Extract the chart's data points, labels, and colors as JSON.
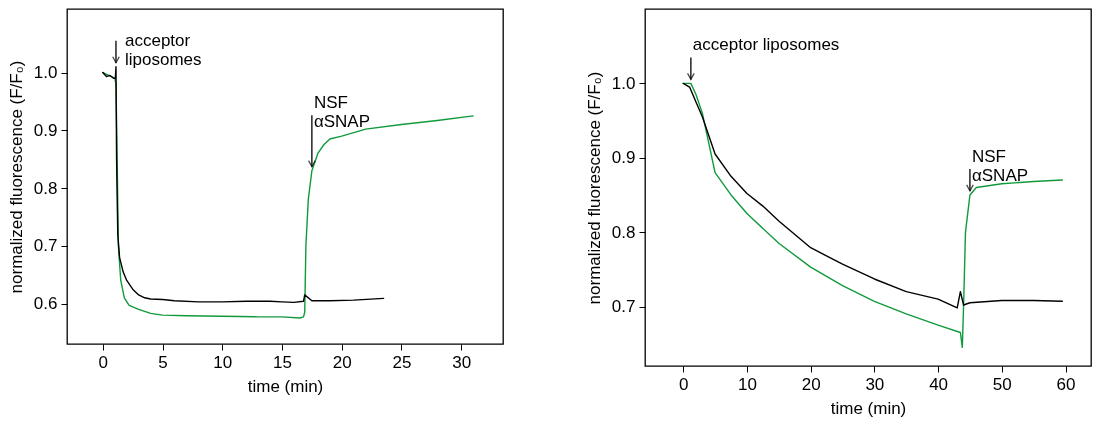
{
  "chart_data": [
    {
      "type": "line",
      "xlabel": "time (min)",
      "ylabel": "normalized fluorescence (F/F₀)",
      "xlim": [
        -3,
        33.5
      ],
      "xticks": [
        0,
        5,
        10,
        15,
        20,
        25,
        30
      ],
      "ylim": [
        0.53,
        1.11
      ],
      "yticks": [
        0.6,
        0.7,
        0.8,
        0.9,
        {
          "value": 1,
          "label": "1.0"
        }
      ],
      "series": [
        {
          "color": "#119a3c",
          "x": [
            0,
            0.5,
            1.0,
            1.1,
            1.2,
            1.3,
            1.5,
            1.8,
            2.2,
            3,
            4,
            5,
            7,
            10,
            13,
            15,
            16.5,
            16.8,
            16.9,
            17.0,
            17.2,
            17.5,
            18,
            18.5,
            19,
            20,
            22,
            25,
            28,
            31
          ],
          "values": [
            1.0,
            0.995,
            0.99,
            0.98,
            0.85,
            0.7,
            0.64,
            0.61,
            0.597,
            0.59,
            0.583,
            0.58,
            0.579,
            0.578,
            0.577,
            0.577,
            0.575,
            0.577,
            0.585,
            0.7,
            0.78,
            0.83,
            0.86,
            0.875,
            0.885,
            0.89,
            0.902,
            0.91,
            0.917,
            0.925
          ]
        },
        {
          "color": "#000000",
          "x": [
            0,
            0.3,
            0.6,
            0.9,
            1.05,
            1.1,
            1.15,
            1.25,
            1.4,
            1.7,
            2,
            2.5,
            3,
            3.5,
            4,
            5,
            6,
            8,
            10,
            12,
            14,
            15,
            16,
            16.8,
            16.9,
            17.5,
            19,
            21,
            23.5
          ],
          "values": [
            1.0,
            0.993,
            0.995,
            0.99,
            0.99,
            1.01,
            0.85,
            0.72,
            0.68,
            0.655,
            0.64,
            0.625,
            0.615,
            0.61,
            0.608,
            0.607,
            0.605,
            0.603,
            0.603,
            0.604,
            0.604,
            0.603,
            0.602,
            0.604,
            0.615,
            0.605,
            0.605,
            0.606,
            0.609
          ]
        }
      ],
      "annotations": [
        {
          "text": "acceptor\nliposomes",
          "x": 1.1,
          "y": 1.01
        },
        {
          "text": "NSF\nαSNAP",
          "x": 17.5,
          "y": 0.83
        }
      ]
    },
    {
      "type": "line",
      "xlabel": "time (min)",
      "ylabel": "normalized fluorescence (F/F₀)",
      "xlim": [
        -6,
        64
      ],
      "xticks": [
        0,
        10,
        20,
        30,
        40,
        50,
        60
      ],
      "ylim": [
        0.62,
        1.1
      ],
      "yticks": [
        0.7,
        0.8,
        0.9,
        {
          "value": 1,
          "label": "1.0"
        }
      ],
      "series": [
        {
          "color": "#119a3c",
          "x": [
            0,
            1.2,
            2,
            3,
            5,
            7.5,
            10,
            15,
            20,
            25,
            30,
            35,
            40,
            43.5,
            43.8,
            44,
            44.3,
            45,
            46,
            50,
            55,
            59.5
          ],
          "values": [
            1.0,
            1.0,
            0.985,
            0.96,
            0.88,
            0.85,
            0.825,
            0.785,
            0.753,
            0.728,
            0.707,
            0.69,
            0.675,
            0.665,
            0.645,
            0.7,
            0.8,
            0.85,
            0.86,
            0.865,
            0.868,
            0.87
          ]
        },
        {
          "color": "#000000",
          "x": [
            0,
            1,
            2,
            3,
            5,
            7.5,
            10,
            12.5,
            15,
            20,
            25,
            30,
            35,
            40,
            43,
            43.5,
            44,
            45,
            50,
            55,
            59.5
          ],
          "values": [
            1.0,
            0.995,
            0.975,
            0.955,
            0.905,
            0.875,
            0.852,
            0.835,
            0.815,
            0.779,
            0.757,
            0.737,
            0.72,
            0.71,
            0.698,
            0.72,
            0.702,
            0.705,
            0.708,
            0.708,
            0.707
          ]
        }
      ],
      "annotations": [
        {
          "text": "acceptor liposomes",
          "x": 1.2,
          "y": 1.0
        },
        {
          "text": "NSF\nαSNAP",
          "x": 45,
          "y": 0.85
        }
      ]
    }
  ]
}
